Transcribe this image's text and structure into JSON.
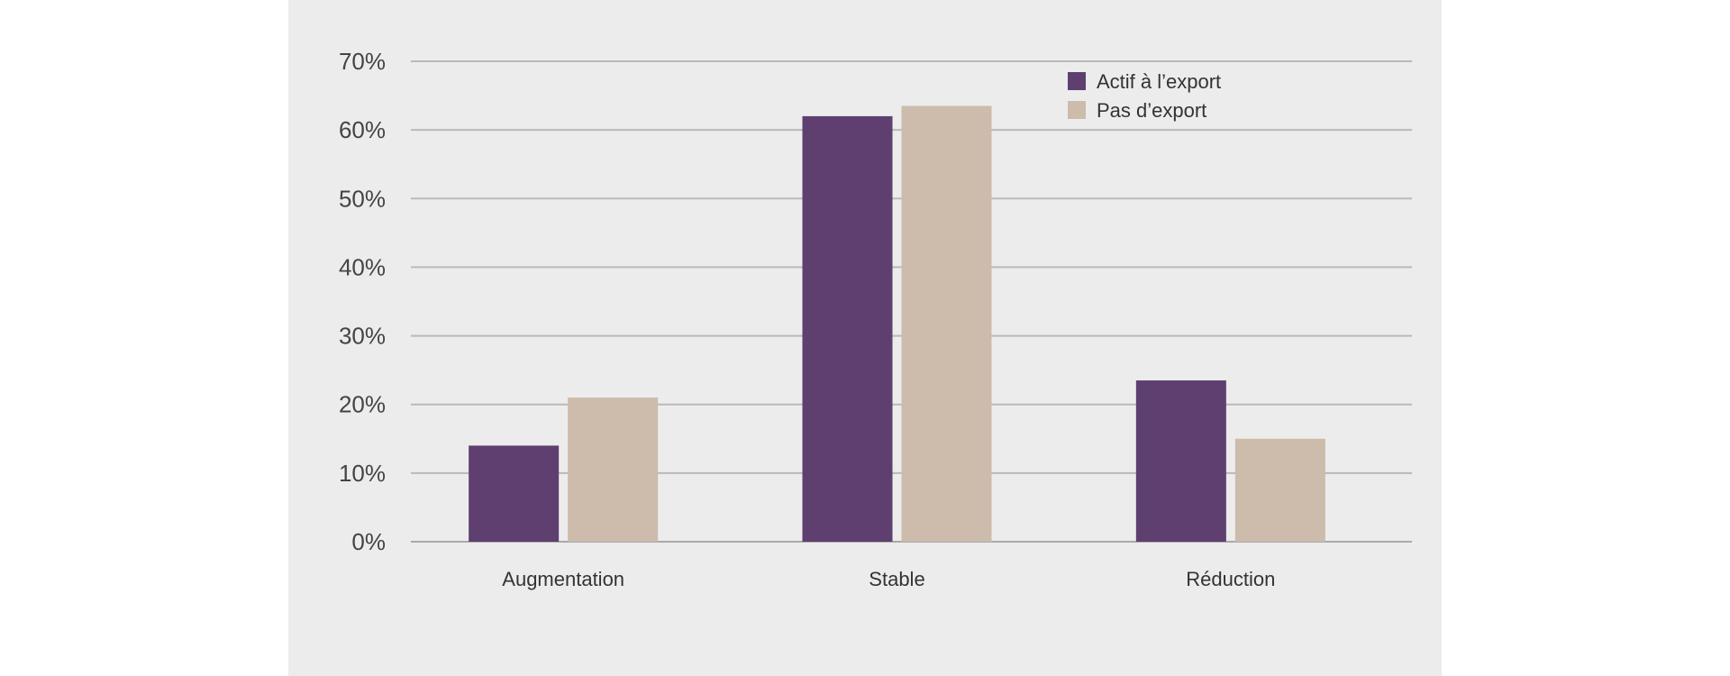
{
  "chart_data": {
    "type": "bar",
    "categories": [
      "Augmentation",
      "Stable",
      "Réduction"
    ],
    "series": [
      {
        "name": "Actif à l’export",
        "values": [
          14,
          62,
          23.5
        ],
        "color": "#5e3f70"
      },
      {
        "name": "Pas d’export",
        "values": [
          21,
          63.5,
          15
        ],
        "color": "#cdbbab"
      }
    ],
    "ylim": [
      0,
      70
    ],
    "yticks": [
      0,
      10,
      20,
      30,
      40,
      50,
      60,
      70
    ],
    "ytick_labels": [
      "0%",
      "10%",
      "20%",
      "30%",
      "40%",
      "50%",
      "60%",
      "70%"
    ],
    "grid": true,
    "legend_position": "top-right",
    "title": "",
    "xlabel": "",
    "ylabel": ""
  }
}
